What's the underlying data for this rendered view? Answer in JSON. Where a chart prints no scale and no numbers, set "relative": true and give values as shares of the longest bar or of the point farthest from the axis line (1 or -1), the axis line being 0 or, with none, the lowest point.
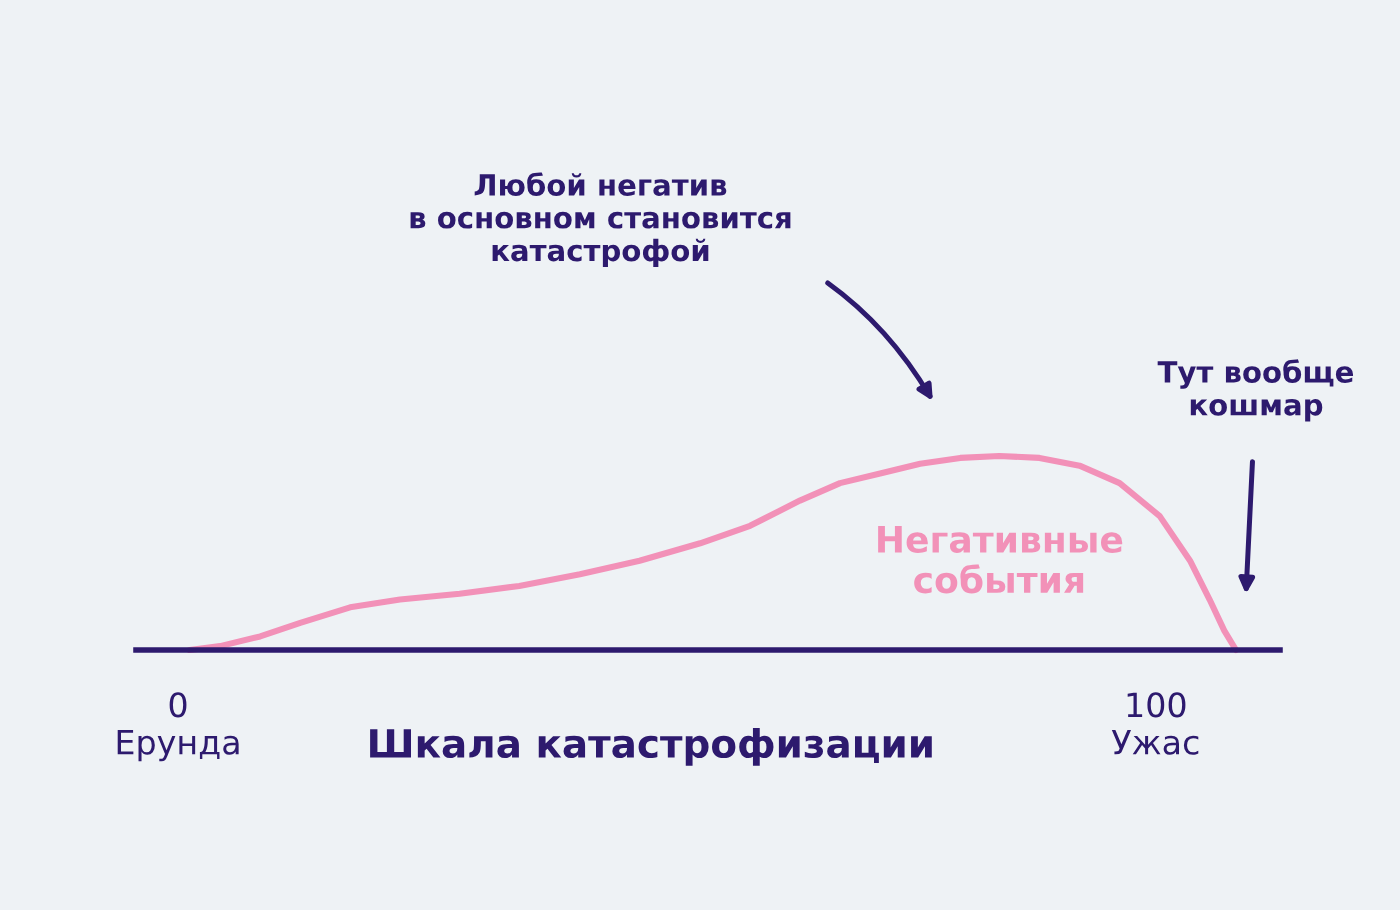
{
  "chart_data": {
    "type": "line",
    "relative": true,
    "xlabel": "Шкала катастрофизации",
    "xlim": [
      -4.3,
      112.7
    ],
    "xticks": [
      {
        "value": 0,
        "label": "0\nЕрунда"
      },
      {
        "value": 100,
        "label": "100\nУжас"
      }
    ],
    "x": [
      1.2,
      4.3,
      8.4,
      12.5,
      17.6,
      22.7,
      28.8,
      34.9,
      41.1,
      47.2,
      53.4,
      58.5,
      63.6,
      67.7,
      71.8,
      75.9,
      80.0,
      84.0,
      88.1,
      92.2,
      96.3,
      100.4,
      103.5,
      105.5,
      107.0,
      108.2
    ],
    "series": [
      {
        "name": "Негативные события",
        "color": "#f291b8",
        "values": [
          0,
          0.02,
          0.07,
          0.14,
          0.22,
          0.26,
          0.29,
          0.33,
          0.39,
          0.46,
          0.55,
          0.64,
          0.77,
          0.86,
          0.91,
          0.96,
          0.99,
          1,
          0.99,
          0.95,
          0.86,
          0.69,
          0.46,
          0.26,
          0.1,
          0
        ]
      }
    ],
    "annotations": [
      "Любой негатив\nв основном становится\nкатастрофой",
      "Тут вообще\nкошмар"
    ],
    "grid": false,
    "legend": false,
    "marker": "none",
    "line_style": "solid"
  }
}
